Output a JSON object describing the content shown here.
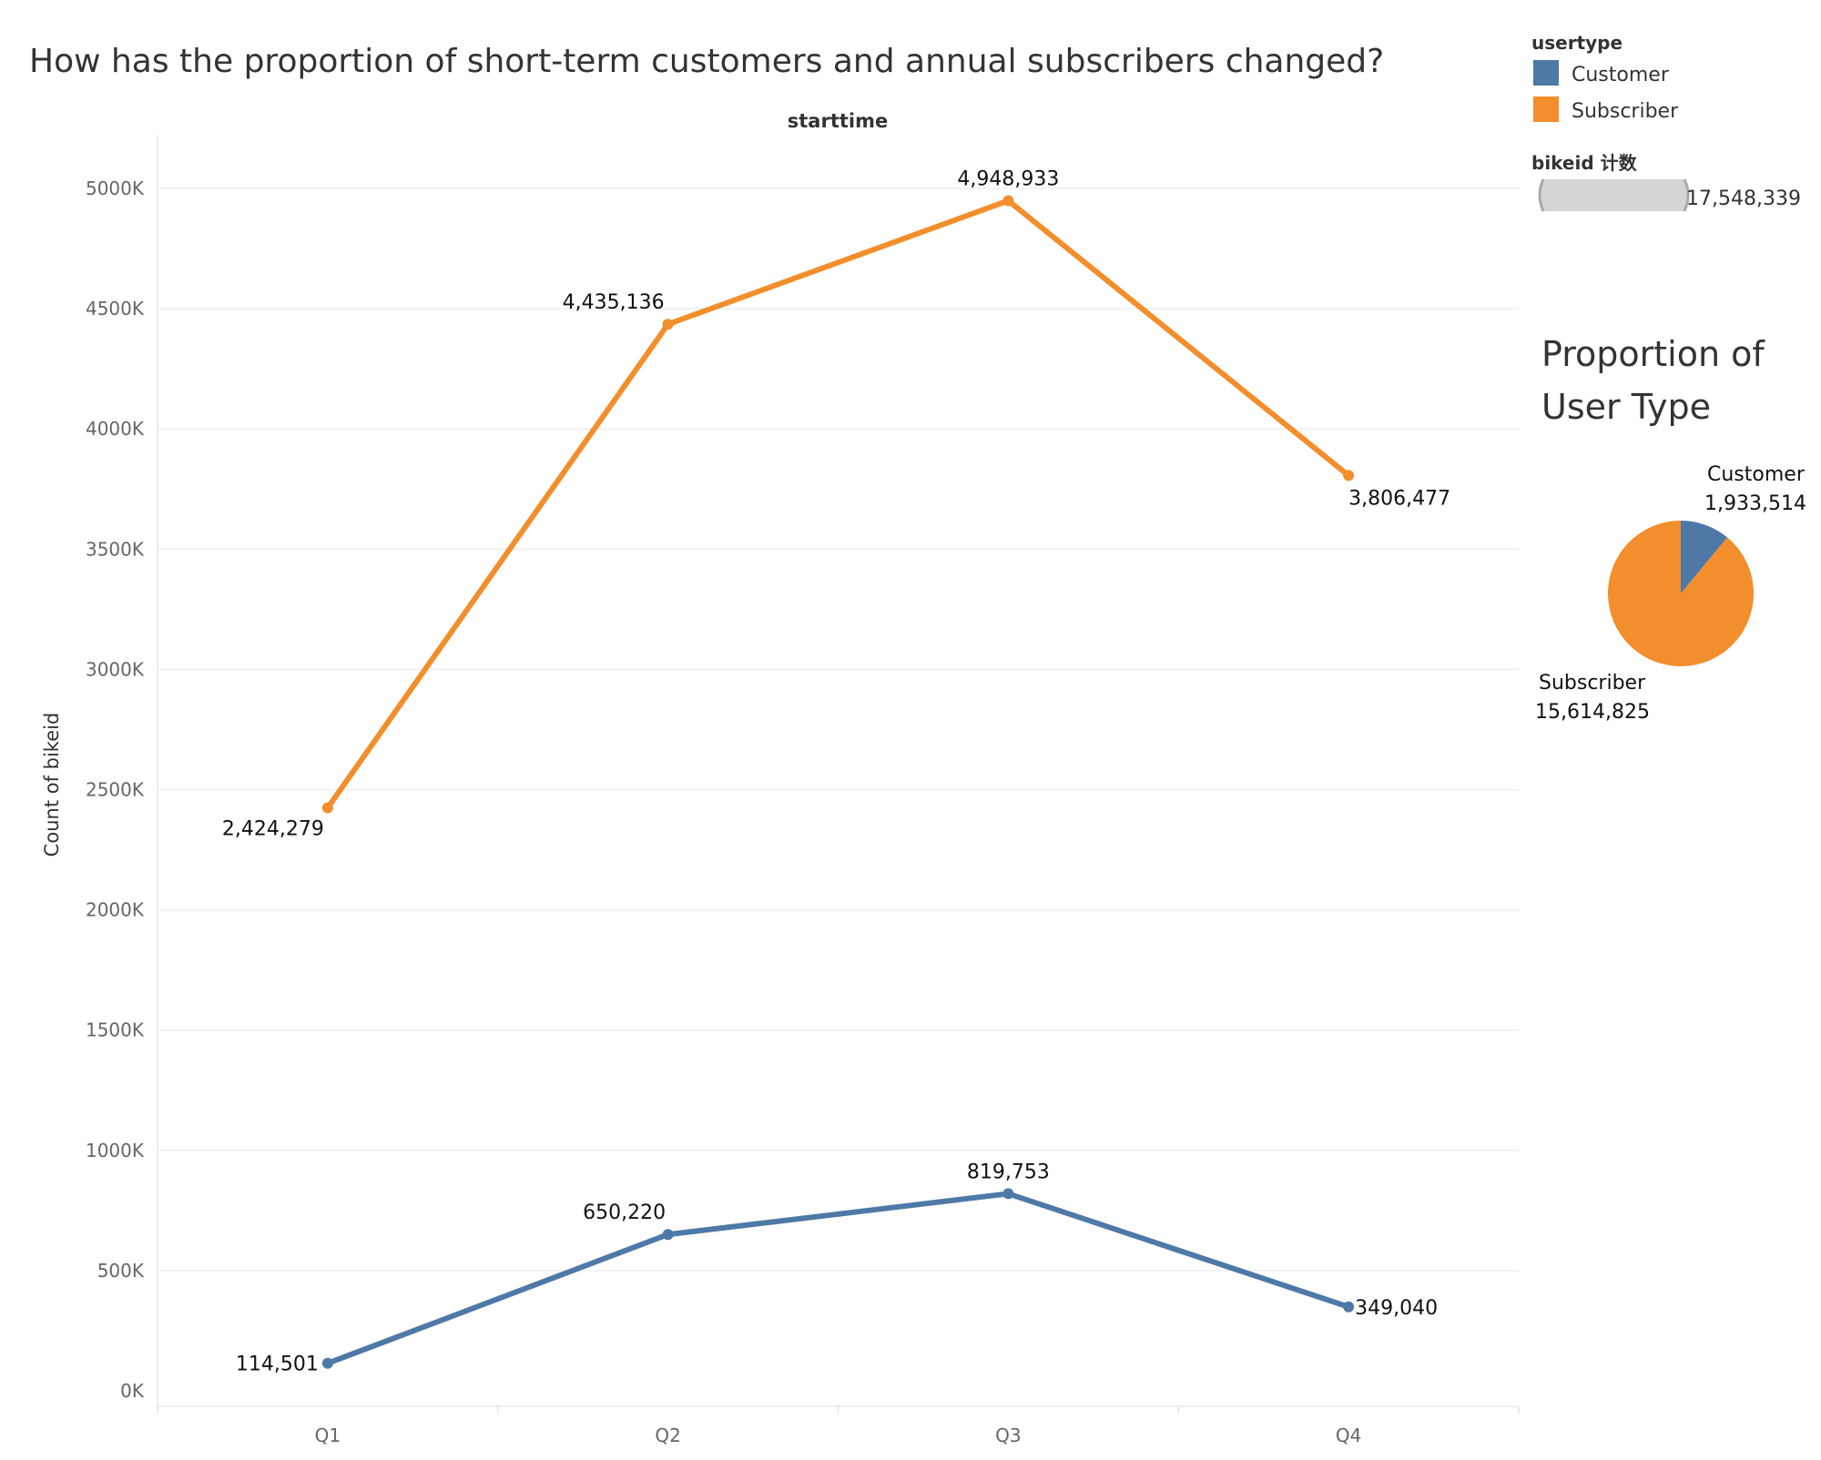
{
  "colors": {
    "customer": "#4e79a7",
    "subscriber": "#f28e2b",
    "grid": "#ececec",
    "axis_text": "#666666",
    "size_legend_fill": "#d4d4d4"
  },
  "chart_data": [
    {
      "type": "line",
      "title": "How has the proportion of short-term customers and annual subscribers changed?",
      "xlabel": "starttime",
      "ylabel": "Count of bikeid",
      "categories": [
        "Q1",
        "Q2",
        "Q3",
        "Q4"
      ],
      "ylim": [
        0,
        5200000
      ],
      "yticks": [
        0,
        500000,
        1000000,
        1500000,
        2000000,
        2500000,
        3000000,
        3500000,
        4000000,
        4500000,
        5000000
      ],
      "ytick_labels": [
        "0K",
        "500K",
        "1000K",
        "1500K",
        "2000K",
        "2500K",
        "3000K",
        "3500K",
        "4000K",
        "4500K",
        "5000K"
      ],
      "grid": true,
      "series": [
        {
          "name": "Subscriber",
          "values": [
            2424279,
            4435136,
            4948933,
            3806477
          ],
          "labels": [
            "2,424,279",
            "4,435,136",
            "4,948,933",
            "3,806,477"
          ]
        },
        {
          "name": "Customer",
          "values": [
            114501,
            650220,
            819753,
            349040
          ],
          "labels": [
            "114,501",
            "650,220",
            "819,753",
            "349,040"
          ]
        }
      ]
    },
    {
      "type": "pie",
      "title": "Proportion of User Type",
      "slices": [
        {
          "name": "Customer",
          "value": 1933514,
          "label": "1,933,514"
        },
        {
          "name": "Subscriber",
          "value": 15614825,
          "label": "15,614,825"
        }
      ]
    }
  ],
  "legend": {
    "color_title": "usertype",
    "color_items": [
      "Customer",
      "Subscriber"
    ],
    "size_title": "bikeid 计数",
    "size_value": "17,548,339"
  }
}
